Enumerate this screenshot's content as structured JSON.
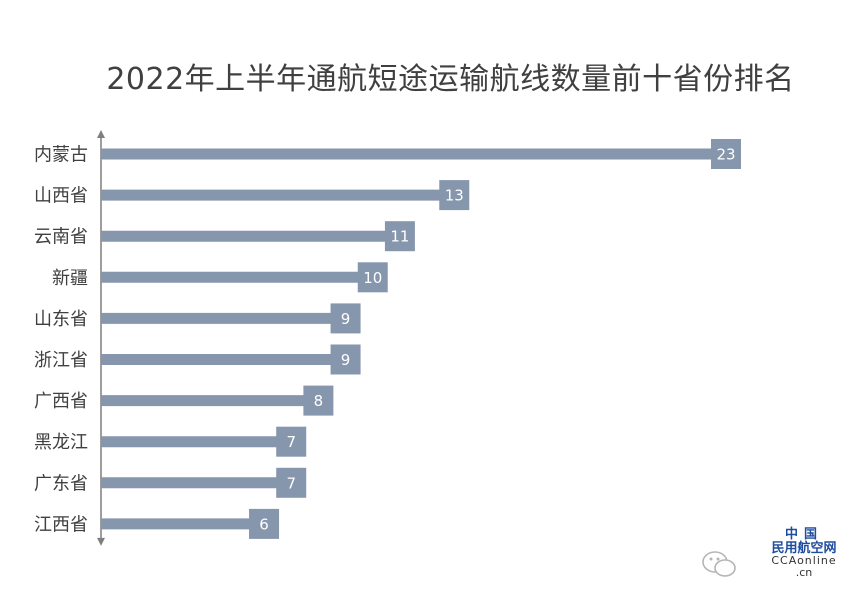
{
  "chart_data": {
    "type": "bar",
    "orientation": "horizontal",
    "title": "2022年上半年通航短途运输航线数量前十省份排名",
    "categories": [
      "内蒙古",
      "山西省",
      "云南省",
      "新疆",
      "山东省",
      "浙江省",
      "广西省",
      "黑龙江",
      "广东省",
      "江西省"
    ],
    "values": [
      23,
      13,
      11,
      10,
      9,
      9,
      8,
      7,
      7,
      6
    ],
    "xlim": [
      0,
      23
    ],
    "grid": false,
    "legend": "none",
    "colors": {
      "bar": "#8696ad",
      "label_box": "#8696ad",
      "axis": "#7f7f7f",
      "text": "#404040"
    }
  },
  "watermark": {
    "logo_line1": "中国",
    "logo_line2": "民用航空网",
    "logo_line3": "CCAonline",
    "logo_line4": ".cn",
    "icon": "wechat-icon"
  }
}
